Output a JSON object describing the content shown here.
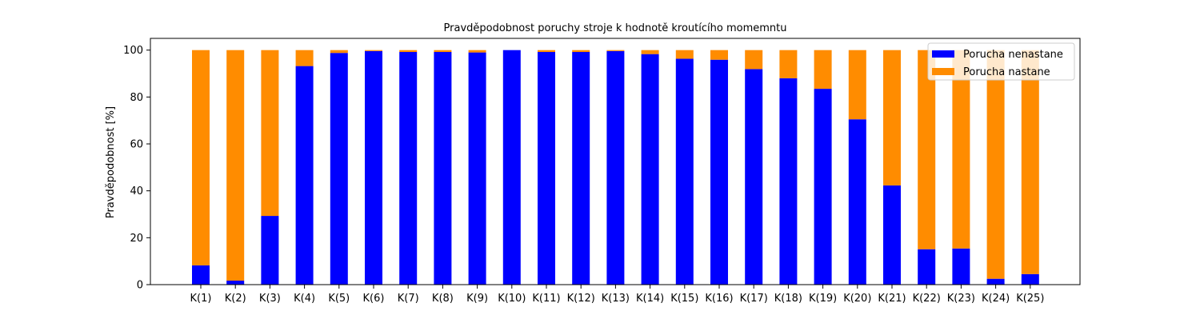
{
  "chart_data": {
    "type": "bar",
    "stacked": true,
    "title": "Pravděpodobnost poruchy stroje k hodnotě kroutícího momemntu",
    "xlabel": "",
    "ylabel": "Pravděpodobnost [%]",
    "ylim": [
      0,
      105
    ],
    "yticks": [
      0,
      20,
      40,
      60,
      80,
      100
    ],
    "grid": false,
    "legend_position": "top-right",
    "categories": [
      "K(1)",
      "K(2)",
      "K(3)",
      "K(4)",
      "K(5)",
      "K(6)",
      "K(7)",
      "K(8)",
      "K(9)",
      "K(10)",
      "K(11)",
      "K(12)",
      "K(13)",
      "K(14)",
      "K(15)",
      "K(16)",
      "K(17)",
      "K(18)",
      "K(19)",
      "K(20)",
      "K(21)",
      "K(22)",
      "K(23)",
      "K(24)",
      "K(25)"
    ],
    "series": [
      {
        "name": "Porucha nenastane",
        "color": "#0000ff",
        "values": [
          8.2,
          1.7,
          29.3,
          93.2,
          98.8,
          99.6,
          99.2,
          99.2,
          99.0,
          100.0,
          99.2,
          99.2,
          99.6,
          98.3,
          96.3,
          95.9,
          91.9,
          88.0,
          83.5,
          70.5,
          42.3,
          15.1,
          15.4,
          2.5,
          4.5
        ]
      },
      {
        "name": "Porucha nastane",
        "color": "#ff8c00",
        "values": [
          91.8,
          98.3,
          70.7,
          6.8,
          1.2,
          0.4,
          0.8,
          0.8,
          1.0,
          0.0,
          0.8,
          0.8,
          0.4,
          1.7,
          3.7,
          4.1,
          8.1,
          12.0,
          16.5,
          29.5,
          57.7,
          84.9,
          84.6,
          97.5,
          95.5
        ]
      }
    ]
  }
}
